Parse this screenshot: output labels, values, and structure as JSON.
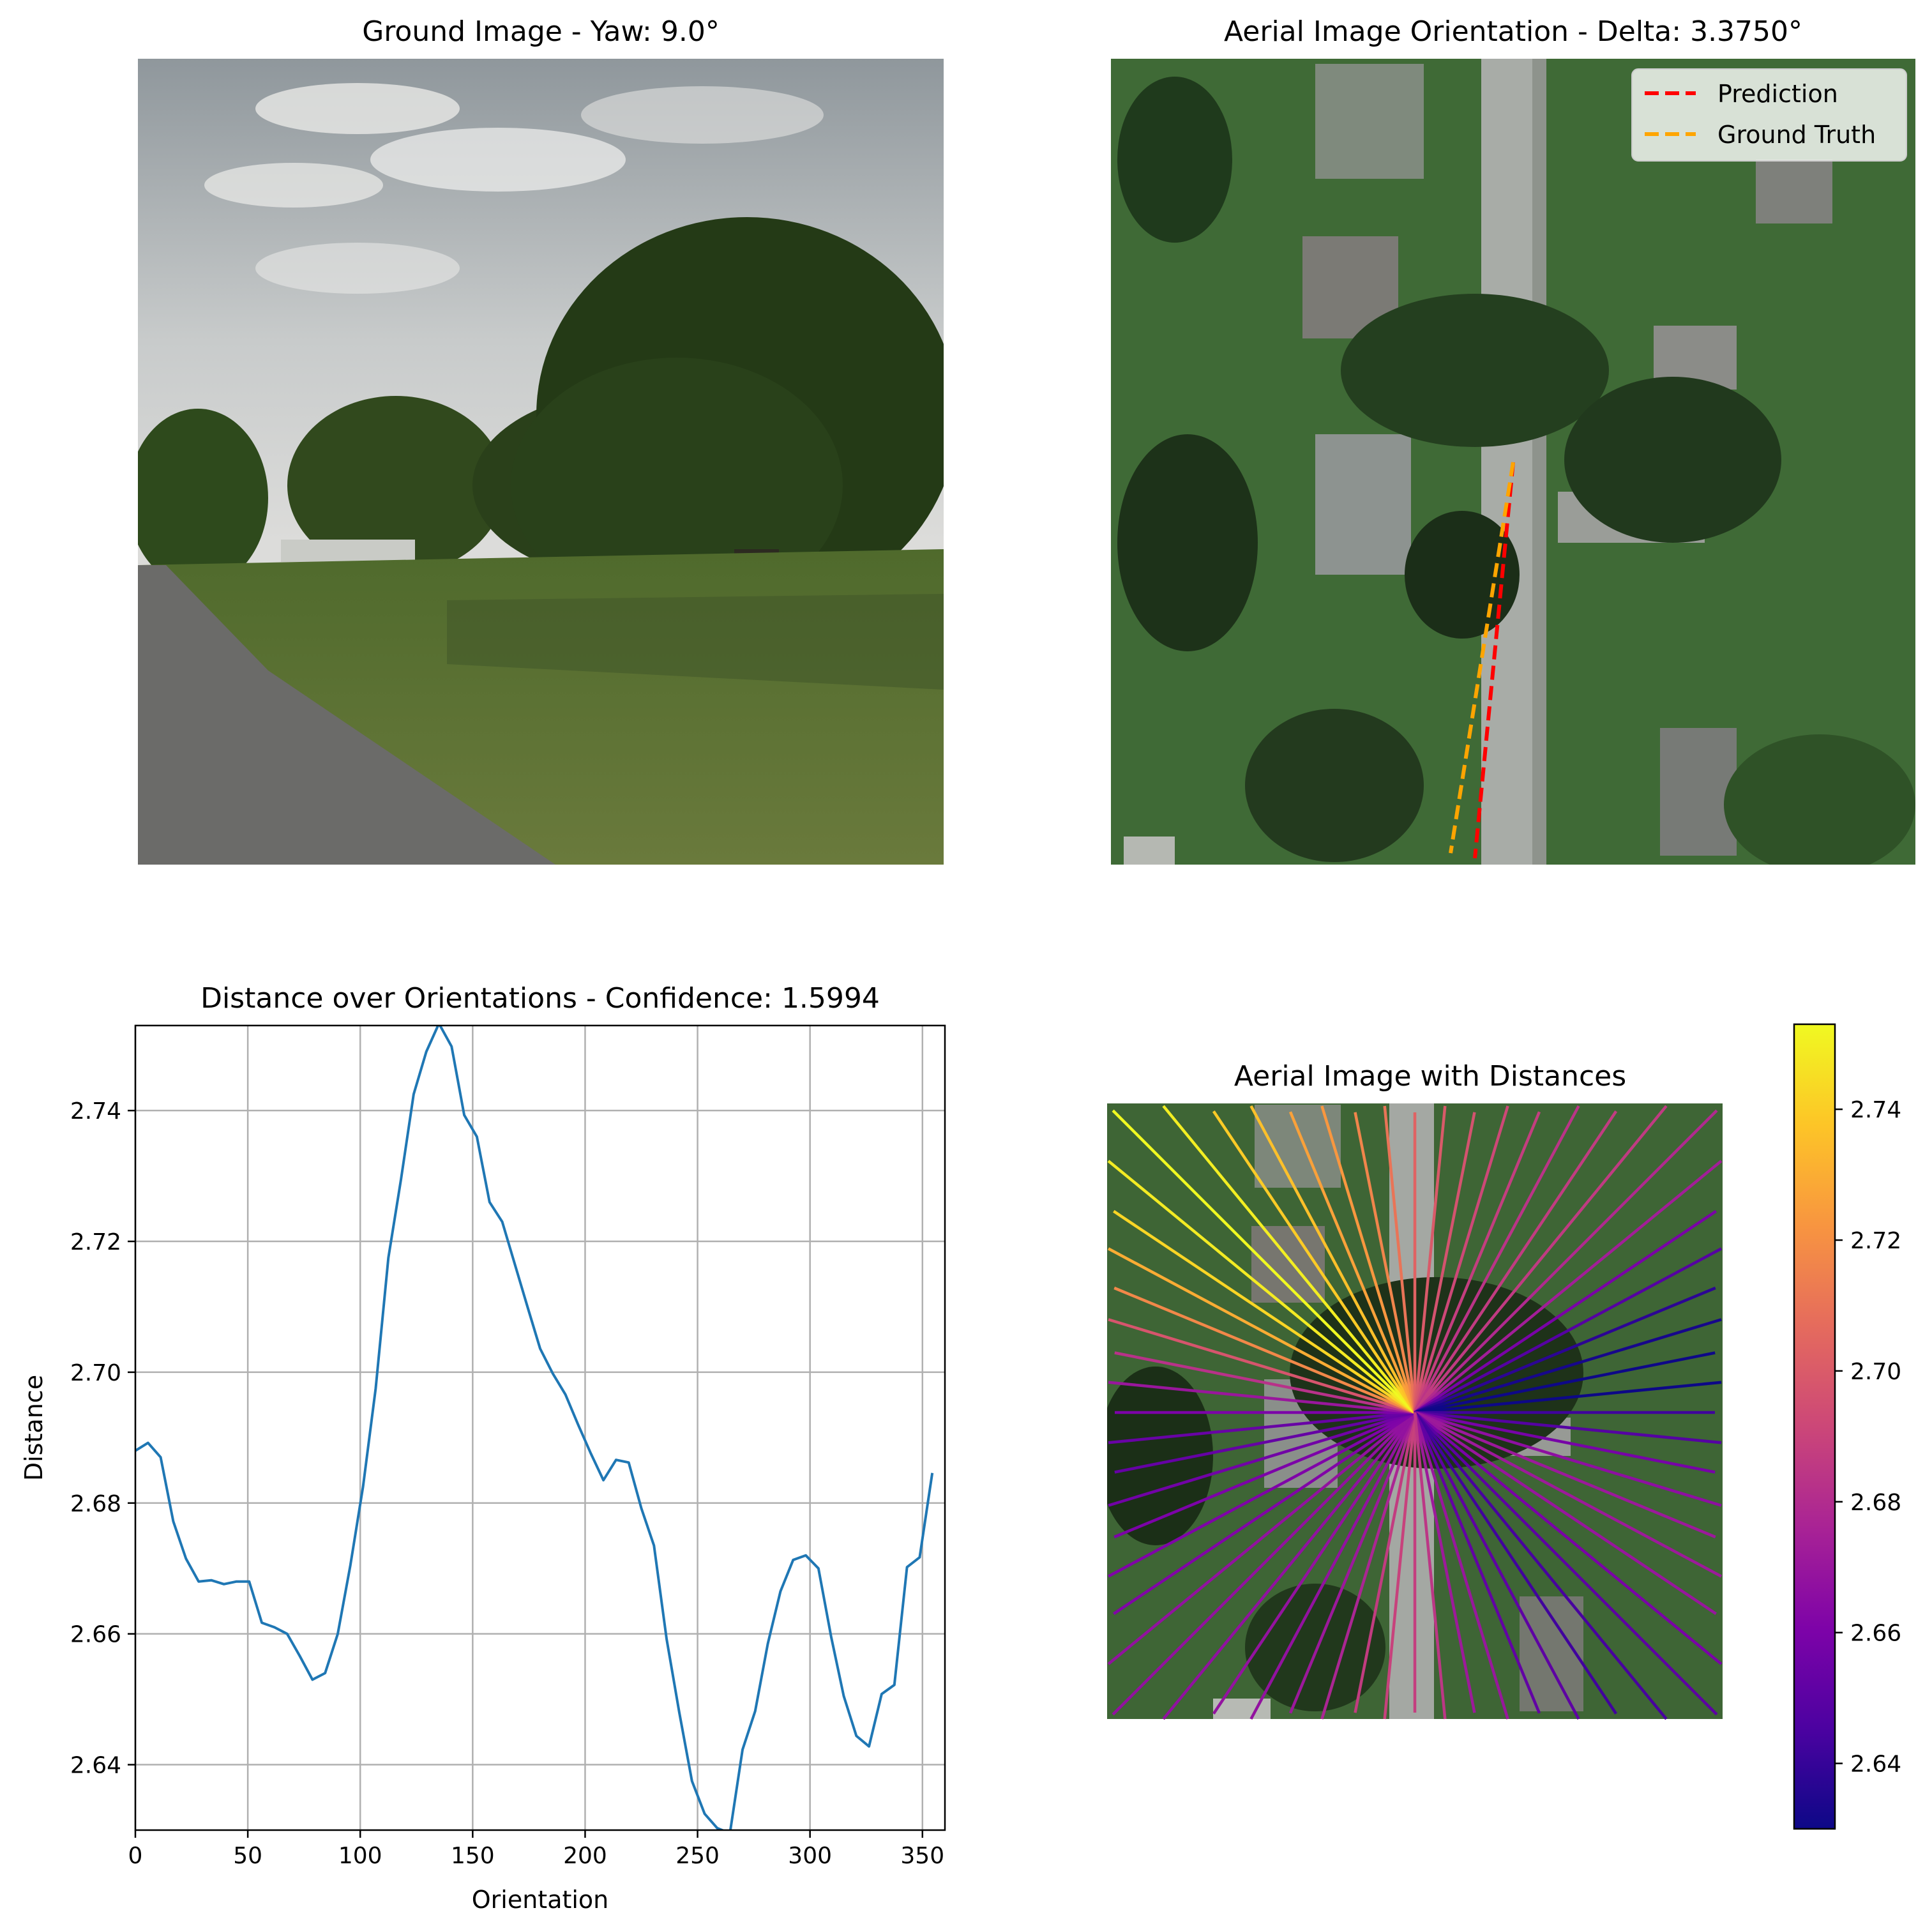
{
  "panels": {
    "ground": {
      "title": "Ground Image - Yaw: 9.0°"
    },
    "aerial": {
      "title": "Aerial Image Orientation - Delta: 3.3750°",
      "legend": [
        {
          "label": "Prediction",
          "color": "#ff0000"
        },
        {
          "label": "Ground Truth",
          "color": "#ffa500"
        }
      ]
    },
    "distance_plot": {
      "title": "Distance over Orientations - Confidence: 1.5994"
    },
    "aerial_distances": {
      "title": "Aerial Image with Distances"
    }
  },
  "colors": {
    "line": "#1f77b4",
    "grid": "#b0b0b0",
    "prediction": "#ff0000",
    "ground_truth": "#ffa500",
    "colormap": "plasma"
  },
  "chart_data": [
    {
      "type": "line",
      "title": "Distance over Orientations - Confidence: 1.5994",
      "xlabel": "Orientation",
      "ylabel": "Distance",
      "xlim": [
        0,
        360
      ],
      "ylim": [
        2.63,
        2.753
      ],
      "xticks": [
        "0",
        "50",
        "100",
        "150",
        "200",
        "250",
        "300",
        "350"
      ],
      "yticks": [
        "2.64",
        "2.66",
        "2.68",
        "2.70",
        "2.72",
        "2.74"
      ],
      "grid": true,
      "x": [
        0,
        5.625,
        11.25,
        16.875,
        22.5,
        28.125,
        33.75,
        39.375,
        45,
        50.625,
        56.25,
        61.875,
        67.5,
        73.125,
        78.75,
        84.375,
        90,
        95.625,
        101.25,
        106.875,
        112.5,
        118.125,
        123.75,
        129.375,
        135,
        140.625,
        146.25,
        151.875,
        157.5,
        163.125,
        168.75,
        174.375,
        180,
        185.625,
        191.25,
        196.875,
        202.5,
        208.125,
        213.75,
        219.375,
        225,
        230.625,
        236.25,
        241.875,
        247.5,
        253.125,
        258.75,
        264.375,
        270,
        275.625,
        281.25,
        286.875,
        292.5,
        298.125,
        303.75,
        309.375,
        315,
        320.625,
        326.25,
        331.875,
        337.5,
        343.125,
        348.75,
        354.375
      ],
      "series": [
        {
          "values": [
            2.688,
            2.6892,
            2.687,
            2.6772,
            2.6715,
            2.668,
            2.6682,
            2.6676,
            2.668,
            2.668,
            2.6617,
            2.661,
            2.66,
            2.6566,
            2.653,
            2.654,
            2.66,
            2.6705,
            2.6825,
            2.6975,
            2.7175,
            2.7295,
            2.7425,
            2.749,
            2.7533,
            2.7498,
            2.7393,
            2.736,
            2.726,
            2.723,
            2.7165,
            2.71,
            2.7036,
            2.6998,
            2.6966,
            2.692,
            2.6876,
            2.6835,
            2.6866,
            2.6862,
            2.6792,
            2.6735,
            2.6592,
            2.648,
            2.6375,
            2.6325,
            2.6303,
            2.6295,
            2.6423,
            2.6482,
            2.6585,
            2.6665,
            2.6713,
            2.672,
            2.67,
            2.6596,
            2.6505,
            2.6444,
            2.6428,
            2.6508,
            2.6522,
            2.6702,
            2.6717,
            2.6846
          ]
        }
      ]
    },
    {
      "type": "heatmap",
      "title": "Aerial Image with Distances",
      "colorbar": {
        "range": [
          2.63,
          2.753
        ],
        "ticks": [
          "2.64",
          "2.66",
          "2.68",
          "2.70",
          "2.72",
          "2.74"
        ],
        "colormap": "plasma"
      }
    }
  ]
}
